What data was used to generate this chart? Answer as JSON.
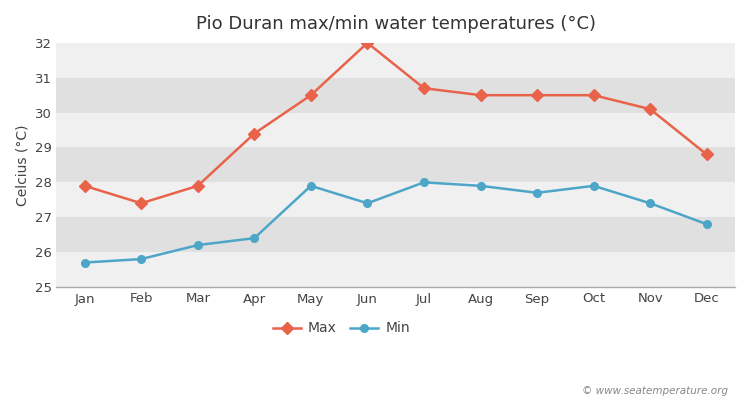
{
  "title": "Pio Duran max/min water temperatures (°C)",
  "ylabel": "Celcius (°C)",
  "watermark": "© www.seatemperature.org",
  "months": [
    "Jan",
    "Feb",
    "Mar",
    "Apr",
    "May",
    "Jun",
    "Jul",
    "Aug",
    "Sep",
    "Oct",
    "Nov",
    "Dec"
  ],
  "max_values": [
    27.9,
    27.4,
    27.9,
    29.4,
    30.5,
    32.0,
    30.7,
    30.5,
    30.5,
    30.5,
    30.1,
    28.8
  ],
  "min_values": [
    25.7,
    25.8,
    26.2,
    26.4,
    27.9,
    27.4,
    28.0,
    27.9,
    27.7,
    27.9,
    27.4,
    26.8
  ],
  "max_color": "#e8634a",
  "min_color": "#4da6c8",
  "bg_color": "#ffffff",
  "band_light": "#f0f0f0",
  "band_dark": "#e0e0e0",
  "ylim": [
    25.0,
    32.0
  ],
  "yticks": [
    25,
    26,
    27,
    28,
    29,
    30,
    31,
    32
  ],
  "legend_labels": [
    "Max",
    "Min"
  ],
  "title_fontsize": 13,
  "label_fontsize": 10,
  "tick_fontsize": 9.5,
  "watermark_fontsize": 7.5
}
